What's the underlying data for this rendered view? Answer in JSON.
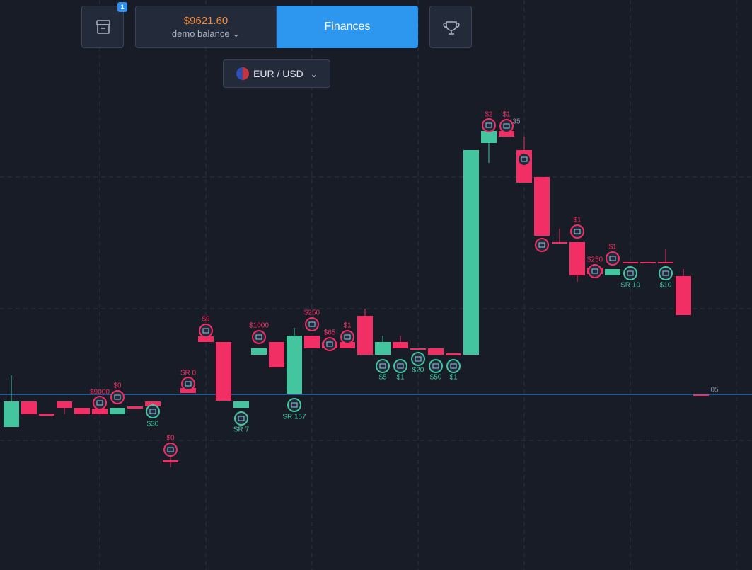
{
  "header": {
    "badge": "1",
    "balance": "$9621.60",
    "account": "demo balance",
    "finances_button": "Finances",
    "pair": "EUR / USD"
  },
  "trade_markers": [
    {
      "label": "$9000"
    },
    {
      "label": "$0"
    },
    {
      "label": "$30"
    },
    {
      "label": "SR 0"
    },
    {
      "label": "$0"
    },
    {
      "label": "$9"
    },
    {
      "label": "SR 7"
    },
    {
      "label": "$1000"
    },
    {
      "label": "SR 157"
    },
    {
      "label": "$250"
    },
    {
      "label": "$65"
    },
    {
      "label": "$1"
    },
    {
      "label": "$5"
    },
    {
      "label": "$1"
    },
    {
      "label": "$20"
    },
    {
      "label": "$50"
    },
    {
      "label": "$1"
    },
    {
      "label": "$2"
    },
    {
      "label": "$1"
    },
    {
      "label": "$1"
    },
    {
      "label": "$250"
    },
    {
      "label": "$1"
    },
    {
      "label": "SR 10"
    },
    {
      "label": "$10"
    }
  ],
  "chart_notes": {
    "stacked_count": "35",
    "price_label": "05"
  }
}
